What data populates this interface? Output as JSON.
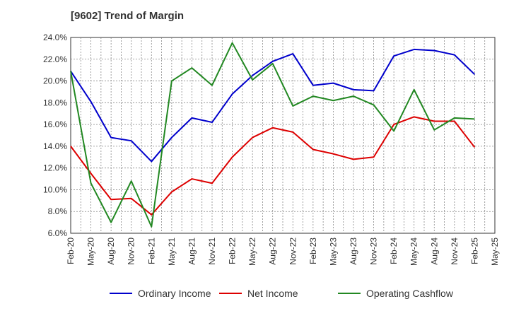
{
  "chart_data": {
    "type": "line",
    "title": "[9602]  Trend of Margin",
    "xlabel": "",
    "ylabel": "",
    "ylim": [
      6.0,
      24.0
    ],
    "ytick_step": 2.0,
    "ytick_suffix": "%",
    "grid": true,
    "legend_position": "bottom",
    "categories": [
      "Feb-20",
      "May-20",
      "Aug-20",
      "Nov-20",
      "Feb-21",
      "May-21",
      "Aug-21",
      "Nov-21",
      "Feb-22",
      "May-22",
      "Aug-22",
      "Nov-22",
      "Feb-23",
      "May-23",
      "Aug-23",
      "Nov-23",
      "Feb-24",
      "May-24",
      "Aug-24",
      "Nov-24",
      "Feb-25",
      "May-25"
    ],
    "series": [
      {
        "name": "Ordinary Income",
        "color": "#0000cc",
        "values": [
          20.9,
          18.1,
          14.8,
          14.5,
          12.6,
          14.8,
          16.6,
          16.2,
          18.8,
          20.5,
          21.8,
          22.5,
          19.6,
          19.8,
          19.2,
          19.1,
          22.3,
          22.9,
          22.8,
          22.4,
          20.6,
          null
        ]
      },
      {
        "name": "Net Income",
        "color": "#dd0000",
        "values": [
          14.0,
          11.5,
          9.1,
          9.2,
          7.7,
          9.8,
          11.0,
          10.6,
          13.0,
          14.8,
          15.7,
          15.3,
          13.7,
          13.3,
          12.8,
          13.0,
          16.0,
          16.7,
          16.3,
          16.3,
          13.9,
          null
        ]
      },
      {
        "name": "Operating Cashflow",
        "color": "#228822",
        "values": [
          20.9,
          10.6,
          7.0,
          10.8,
          6.6,
          20.0,
          21.2,
          19.6,
          23.5,
          20.1,
          21.6,
          17.7,
          18.6,
          18.2,
          18.6,
          17.8,
          15.4,
          19.2,
          15.5,
          16.6,
          16.5,
          null
        ]
      }
    ]
  }
}
